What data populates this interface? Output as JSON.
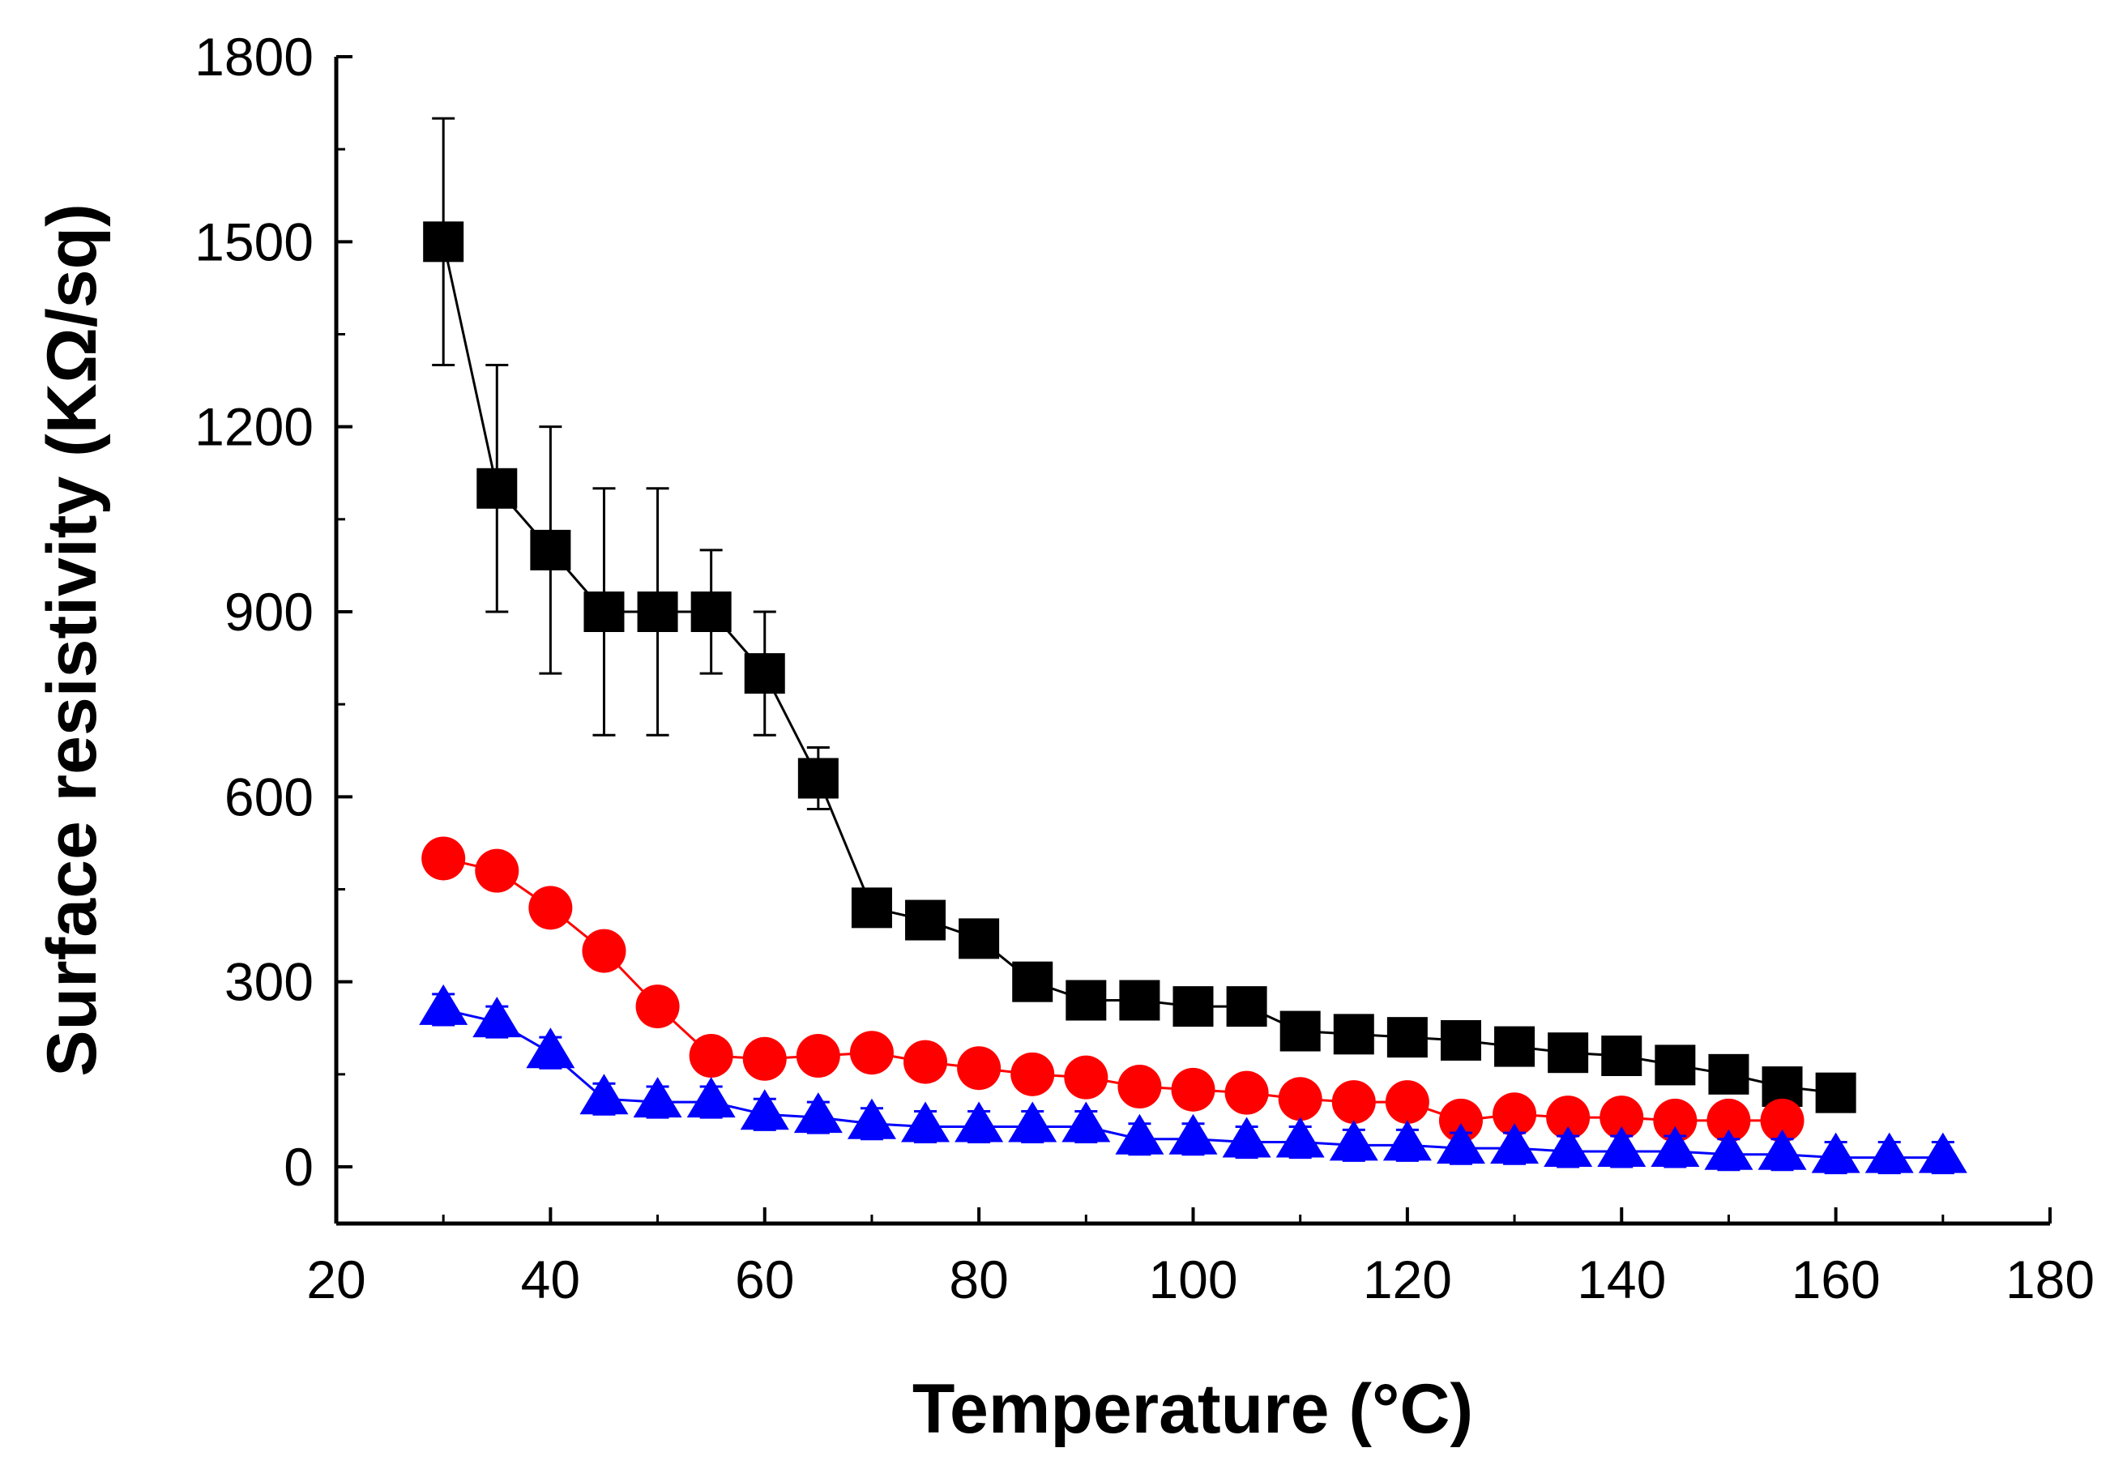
{
  "chart_data": {
    "type": "scatter",
    "title": "",
    "xlabel": "Temperature (°C)",
    "ylabel": "Surface resistivity (KΩ/sq)",
    "xlim": [
      20,
      180
    ],
    "ylim": [
      -100,
      1800
    ],
    "x_ticks": [
      20,
      40,
      60,
      80,
      100,
      120,
      140,
      160,
      180
    ],
    "x_tick_labels": [
      "20",
      "40",
      "60",
      "80",
      "100",
      "120",
      "140",
      "160",
      "180"
    ],
    "y_ticks": [
      0,
      300,
      600,
      900,
      1200,
      1500,
      1800
    ],
    "y_tick_labels": [
      "0",
      "300",
      "600",
      "900",
      "1200",
      "1500",
      "1800"
    ],
    "grid": false,
    "legend": "none",
    "series": [
      {
        "name": "series-square",
        "marker": "square",
        "color": "#000000",
        "x": [
          30,
          35,
          40,
          45,
          50,
          55,
          60,
          65,
          70,
          75,
          80,
          85,
          90,
          95,
          100,
          105,
          110,
          115,
          120,
          125,
          130,
          135,
          140,
          145,
          150,
          155,
          160
        ],
        "y": [
          1500,
          1100,
          1000,
          900,
          900,
          900,
          800,
          630,
          420,
          400,
          370,
          300,
          270,
          270,
          260,
          260,
          220,
          215,
          210,
          205,
          195,
          185,
          180,
          165,
          150,
          130,
          120
        ],
        "error": [
          200,
          200,
          200,
          200,
          200,
          100,
          100,
          50,
          0,
          0,
          0,
          0,
          0,
          0,
          0,
          0,
          0,
          0,
          0,
          0,
          0,
          0,
          0,
          0,
          0,
          0,
          0
        ]
      },
      {
        "name": "series-circle",
        "marker": "circle",
        "color": "#ff0000",
        "x": [
          30,
          35,
          40,
          45,
          50,
          55,
          60,
          65,
          70,
          75,
          80,
          85,
          90,
          95,
          100,
          105,
          110,
          115,
          120,
          125,
          130,
          135,
          140,
          145,
          150,
          155
        ],
        "y": [
          500,
          480,
          420,
          350,
          260,
          180,
          175,
          180,
          185,
          170,
          160,
          150,
          145,
          130,
          125,
          120,
          110,
          105,
          105,
          75,
          85,
          80,
          80,
          75,
          75,
          75
        ],
        "error": []
      },
      {
        "name": "series-triangle",
        "marker": "triangle",
        "color": "#0000ff",
        "x": [
          30,
          35,
          40,
          45,
          50,
          55,
          60,
          65,
          70,
          75,
          80,
          85,
          90,
          95,
          100,
          105,
          110,
          115,
          120,
          125,
          130,
          135,
          140,
          145,
          150,
          155,
          160,
          165,
          170
        ],
        "y": [
          255,
          235,
          185,
          110,
          105,
          105,
          85,
          80,
          70,
          65,
          65,
          65,
          65,
          45,
          45,
          40,
          40,
          35,
          35,
          30,
          30,
          25,
          25,
          25,
          20,
          20,
          15,
          15,
          15
        ],
        "error": [
          25,
          25,
          25,
          25,
          25,
          25,
          25,
          25,
          25,
          25,
          25,
          25,
          25,
          25,
          25,
          25,
          25,
          25,
          25,
          25,
          25,
          25,
          25,
          25,
          25,
          25,
          25,
          25,
          25
        ]
      }
    ]
  }
}
